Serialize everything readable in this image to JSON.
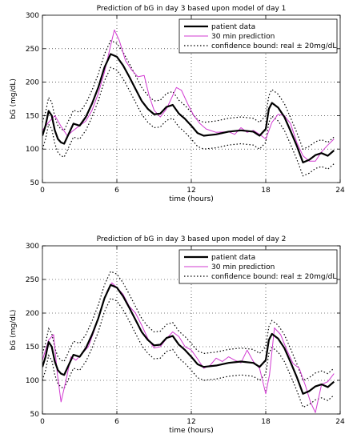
{
  "chart_data": [
    {
      "type": "line",
      "title": "Prediction of bG in day 3 based upon model of day 1",
      "xlabel": "time (hours)",
      "ylabel": "bG (mg/dL)",
      "xlim": [
        0,
        24
      ],
      "ylim": [
        50,
        300
      ],
      "xticks": [
        0,
        6,
        12,
        18,
        24
      ],
      "yticks": [
        50,
        100,
        150,
        200,
        250,
        300
      ],
      "grid": "dotted",
      "legend_position": "top-right",
      "series": [
        {
          "name": "patient data",
          "style": "solid-thick",
          "color": "#000000",
          "x": [
            0,
            0.25,
            0.5,
            0.75,
            1,
            1.25,
            1.5,
            1.75,
            2,
            2.5,
            3,
            3.5,
            4,
            4.5,
            5,
            5.5,
            6,
            6.5,
            7,
            7.5,
            8,
            8.5,
            9,
            9.5,
            10,
            10.5,
            11,
            11.5,
            12,
            12.5,
            13,
            14,
            15,
            16,
            17,
            17.5,
            18,
            18.25,
            18.5,
            19,
            19.5,
            20,
            20.5,
            21,
            21.5,
            22,
            22.5,
            23,
            23.5
          ],
          "y": [
            120,
            135,
            157,
            150,
            128,
            115,
            110,
            108,
            118,
            138,
            135,
            148,
            168,
            192,
            222,
            242,
            238,
            225,
            208,
            190,
            172,
            160,
            152,
            153,
            163,
            166,
            153,
            145,
            135,
            124,
            120,
            122,
            126,
            128,
            126,
            120,
            130,
            160,
            169,
            162,
            148,
            127,
            105,
            80,
            84,
            91,
            94,
            90,
            98
          ]
        },
        {
          "name": "30 min prediction",
          "style": "solid-thin",
          "color": "#d23bd2",
          "x": [
            0,
            0.5,
            1,
            1.5,
            2,
            2.5,
            3,
            3.5,
            4,
            4.5,
            5,
            5.5,
            5.8,
            6.2,
            6.7,
            7.2,
            7.7,
            8.2,
            8.6,
            9,
            9.5,
            10,
            10.5,
            10.8,
            11.2,
            11.7,
            12.2,
            12.7,
            13.2,
            14,
            15,
            15.5,
            16,
            16.5,
            17,
            17.5,
            18,
            18.5,
            19,
            19.5,
            20,
            20.5,
            21,
            21.5,
            22,
            22.5,
            23,
            23.5
          ],
          "y": [
            128,
            140,
            150,
            134,
            120,
            128,
            135,
            142,
            158,
            183,
            215,
            255,
            278,
            262,
            232,
            218,
            208,
            210,
            180,
            158,
            148,
            160,
            180,
            192,
            188,
            168,
            150,
            138,
            130,
            125,
            126,
            122,
            132,
            125,
            128,
            122,
            115,
            140,
            152,
            150,
            138,
            110,
            90,
            82,
            82,
            96,
            106,
            115
          ]
        },
        {
          "name": "confidence bound: real ± 20mg/dL",
          "style": "dotted",
          "color": "#000000"
        }
      ]
    },
    {
      "type": "line",
      "title": "Prediction of bG in day 3 based upon model of day 2",
      "xlabel": "time (hours)",
      "ylabel": "bG (mg/dL)",
      "xlim": [
        0,
        24
      ],
      "ylim": [
        50,
        300
      ],
      "xticks": [
        0,
        6,
        12,
        18,
        24
      ],
      "yticks": [
        50,
        100,
        150,
        200,
        250,
        300
      ],
      "grid": "dotted",
      "legend_position": "top-right",
      "series": [
        {
          "name": "patient data",
          "style": "solid-thick",
          "color": "#000000",
          "x": [
            0,
            0.25,
            0.5,
            0.75,
            1,
            1.25,
            1.5,
            1.75,
            2,
            2.5,
            3,
            3.5,
            4,
            4.5,
            5,
            5.5,
            6,
            6.5,
            7,
            7.5,
            8,
            8.5,
            9,
            9.5,
            10,
            10.5,
            11,
            11.5,
            12,
            12.5,
            13,
            14,
            15,
            16,
            17,
            17.5,
            18,
            18.25,
            18.5,
            19,
            19.5,
            20,
            20.5,
            21,
            21.5,
            22,
            22.5,
            23,
            23.5
          ],
          "y": [
            120,
            135,
            157,
            150,
            128,
            115,
            110,
            108,
            118,
            138,
            135,
            148,
            168,
            192,
            222,
            242,
            238,
            225,
            208,
            190,
            172,
            160,
            152,
            153,
            163,
            166,
            153,
            145,
            135,
            124,
            120,
            122,
            126,
            128,
            126,
            120,
            130,
            160,
            169,
            162,
            148,
            127,
            105,
            80,
            84,
            91,
            94,
            90,
            98
          ]
        },
        {
          "name": "30 min prediction",
          "style": "solid-thin",
          "color": "#d23bd2",
          "x": [
            0,
            0.5,
            0.9,
            1.2,
            1.5,
            1.9,
            2.3,
            2.7,
            3.2,
            3.7,
            4.2,
            4.7,
            5.2,
            5.6,
            6,
            6.5,
            7,
            7.5,
            8,
            8.5,
            9,
            9.5,
            10,
            10.5,
            11,
            11.5,
            12,
            12.5,
            13,
            13.5,
            14,
            14.5,
            15,
            15.5,
            16,
            16.5,
            17,
            17.5,
            18,
            18.3,
            18.7,
            19.2,
            19.7,
            20.2,
            20.7,
            21.2,
            21.6,
            22,
            22.5,
            23,
            23.5
          ],
          "y": [
            130,
            160,
            168,
            110,
            68,
            100,
            135,
            130,
            140,
            150,
            175,
            205,
            232,
            245,
            238,
            228,
            210,
            200,
            182,
            162,
            148,
            150,
            162,
            172,
            165,
            150,
            145,
            132,
            118,
            122,
            133,
            128,
            135,
            130,
            126,
            145,
            128,
            118,
            80,
            108,
            178,
            168,
            145,
            125,
            118,
            92,
            68,
            52,
            94,
            98,
            110
          ]
        },
        {
          "name": "confidence bound: real ± 20mg/dL",
          "style": "dotted",
          "color": "#000000"
        }
      ]
    }
  ]
}
